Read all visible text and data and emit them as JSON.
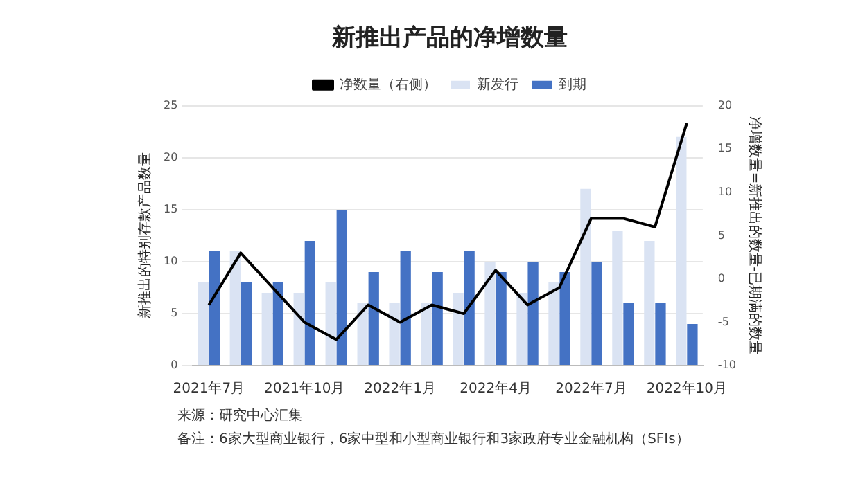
{
  "chart_data": {
    "type": "bar",
    "title": "新推出产品的净增数量",
    "ylabel": "新推出的特别存款产品数量",
    "y2label": "净增数量=新推出的数量-已期满的数量",
    "categories": [
      "2021年7月",
      null,
      null,
      "2021年10月",
      null,
      null,
      "2022年1月",
      null,
      null,
      "2022年4月",
      null,
      null,
      "2022年7月",
      null,
      null,
      "2022年10月"
    ],
    "series": [
      {
        "name": "新发行",
        "color": "#dae3f3",
        "values": [
          8,
          11,
          7,
          7,
          8,
          6,
          6,
          6,
          7,
          10,
          7,
          8,
          17,
          13,
          12,
          22
        ]
      },
      {
        "name": "到期",
        "color": "#4472c4",
        "values": [
          11,
          8,
          8,
          12,
          15,
          9,
          11,
          9,
          11,
          9,
          10,
          9,
          10,
          6,
          6,
          4
        ]
      },
      {
        "name": "净数量（右侧）",
        "type": "line",
        "axis": "y2",
        "color": "#000000",
        "values": [
          -3,
          3,
          -1,
          -5,
          -7,
          -3,
          -5,
          -3,
          -4,
          1,
          -3,
          -1,
          7,
          7,
          6,
          18
        ]
      }
    ],
    "ylim": [
      0,
      25
    ],
    "yticks": [
      0,
      5,
      10,
      15,
      20,
      25
    ],
    "y2lim": [
      -10,
      20
    ],
    "y2ticks": [
      -10,
      -5,
      0,
      5,
      10,
      15,
      20
    ],
    "grid": "y",
    "legend": "top",
    "marker": "none",
    "annotations": [
      "来源：研究中心汇集",
      "备注：6家大型商业银行，6家中型和小型商业银行和3家政府专业金融机构（SFIs）"
    ]
  }
}
